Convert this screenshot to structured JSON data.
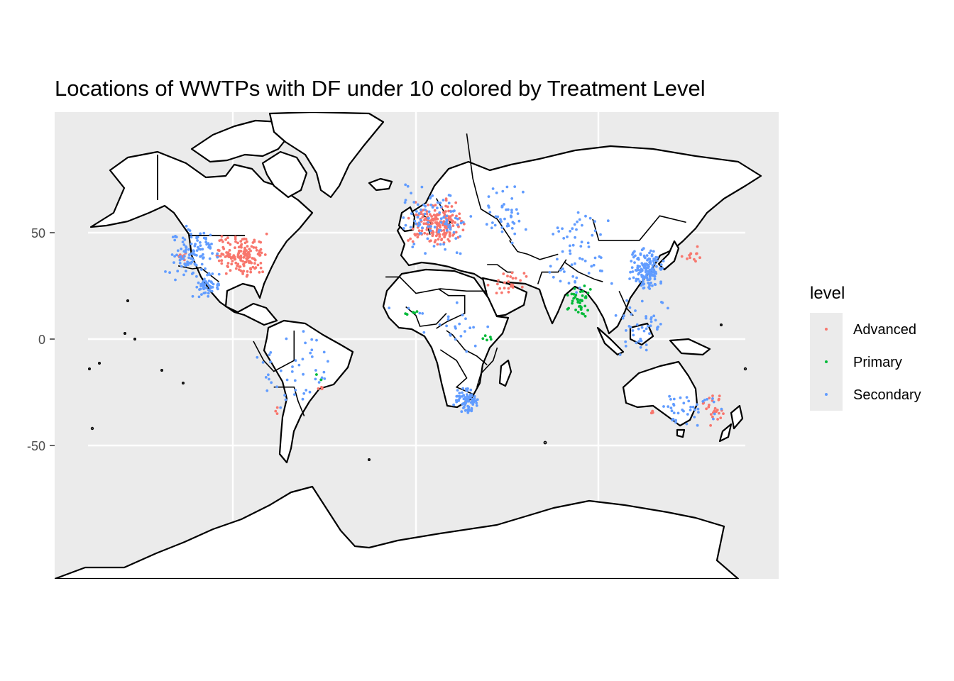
{
  "title": "Locations of WWTPs with DF under 10 colored by Treatment Level",
  "y_tick_labels": [
    "50",
    "0",
    "-50"
  ],
  "legend": {
    "title": "level",
    "items": [
      {
        "label": "Advanced",
        "color": "#F8766D"
      },
      {
        "label": "Primary",
        "color": "#00BA38"
      },
      {
        "label": "Secondary",
        "color": "#619CFF"
      }
    ]
  },
  "colors": {
    "panel_background": "#EBEBEB",
    "grid": "#FFFFFF",
    "land": "#FFFFFF",
    "border": "#000000"
  },
  "map": {
    "projection": "mercator",
    "ylim": [
      -90,
      90
    ],
    "y_breaks": [
      50,
      0,
      -50
    ],
    "x_breaks": [
      -90,
      0,
      90
    ]
  },
  "clusters": [
    {
      "level": "Advanced",
      "lon": [
        -100,
        -72
      ],
      "lat": [
        28,
        45
      ],
      "count": 160
    },
    {
      "level": "Advanced",
      "lon": [
        -118,
        -113
      ],
      "lat": [
        32,
        38
      ],
      "count": 10
    },
    {
      "level": "Advanced",
      "lon": [
        -5,
        25
      ],
      "lat": [
        40,
        55
      ],
      "count": 190
    },
    {
      "level": "Advanced",
      "lon": [
        34,
        56
      ],
      "lat": [
        20,
        31
      ],
      "count": 25
    },
    {
      "level": "Advanced",
      "lon": [
        130,
        142
      ],
      "lat": [
        33,
        40
      ],
      "count": 12
    },
    {
      "level": "Advanced",
      "lon": [
        140,
        153
      ],
      "lat": [
        -38,
        -25
      ],
      "count": 25
    },
    {
      "level": "Advanced",
      "lon": [
        115,
        117
      ],
      "lat": [
        -34,
        -31
      ],
      "count": 4
    },
    {
      "level": "Advanced",
      "lon": [
        -50,
        -44
      ],
      "lat": [
        -24,
        -20
      ],
      "count": 4
    },
    {
      "level": "Advanced",
      "lon": [
        -70,
        -68
      ],
      "lat": [
        -34,
        -30
      ],
      "count": 3
    },
    {
      "level": "Primary",
      "lon": [
        72,
        88
      ],
      "lat": [
        10,
        28
      ],
      "count": 40
    },
    {
      "level": "Primary",
      "lon": [
        -10,
        5
      ],
      "lat": [
        10,
        15
      ],
      "count": 5
    },
    {
      "level": "Primary",
      "lon": [
        32,
        38
      ],
      "lat": [
        -2,
        3
      ],
      "count": 5
    },
    {
      "level": "Primary",
      "lon": [
        -50,
        -45
      ],
      "lat": [
        -20,
        -16
      ],
      "count": 3
    },
    {
      "level": "Secondary",
      "lon": [
        -125,
        -95
      ],
      "lat": [
        25,
        48
      ],
      "count": 110
    },
    {
      "level": "Secondary",
      "lon": [
        -110,
        -95
      ],
      "lat": [
        18,
        30
      ],
      "count": 50
    },
    {
      "level": "Secondary",
      "lon": [
        -80,
        -40
      ],
      "lat": [
        -35,
        5
      ],
      "count": 45
    },
    {
      "level": "Secondary",
      "lon": [
        -10,
        30
      ],
      "lat": [
        35,
        60
      ],
      "count": 90
    },
    {
      "level": "Secondary",
      "lon": [
        30,
        60
      ],
      "lat": [
        40,
        60
      ],
      "count": 45
    },
    {
      "level": "Secondary",
      "lon": [
        60,
        100
      ],
      "lat": [
        20,
        55
      ],
      "count": 60
    },
    {
      "level": "Secondary",
      "lon": [
        105,
        122
      ],
      "lat": [
        22,
        40
      ],
      "count": 150
    },
    {
      "level": "Secondary",
      "lon": [
        95,
        125
      ],
      "lat": [
        -8,
        22
      ],
      "count": 45
    },
    {
      "level": "Secondary",
      "lon": [
        18,
        32
      ],
      "lat": [
        -34,
        -22
      ],
      "count": 75
    },
    {
      "level": "Secondary",
      "lon": [
        115,
        152
      ],
      "lat": [
        -38,
        -25
      ],
      "count": 40
    },
    {
      "level": "Secondary",
      "lon": [
        -15,
        45
      ],
      "lat": [
        -10,
        20
      ],
      "count": 25
    }
  ]
}
